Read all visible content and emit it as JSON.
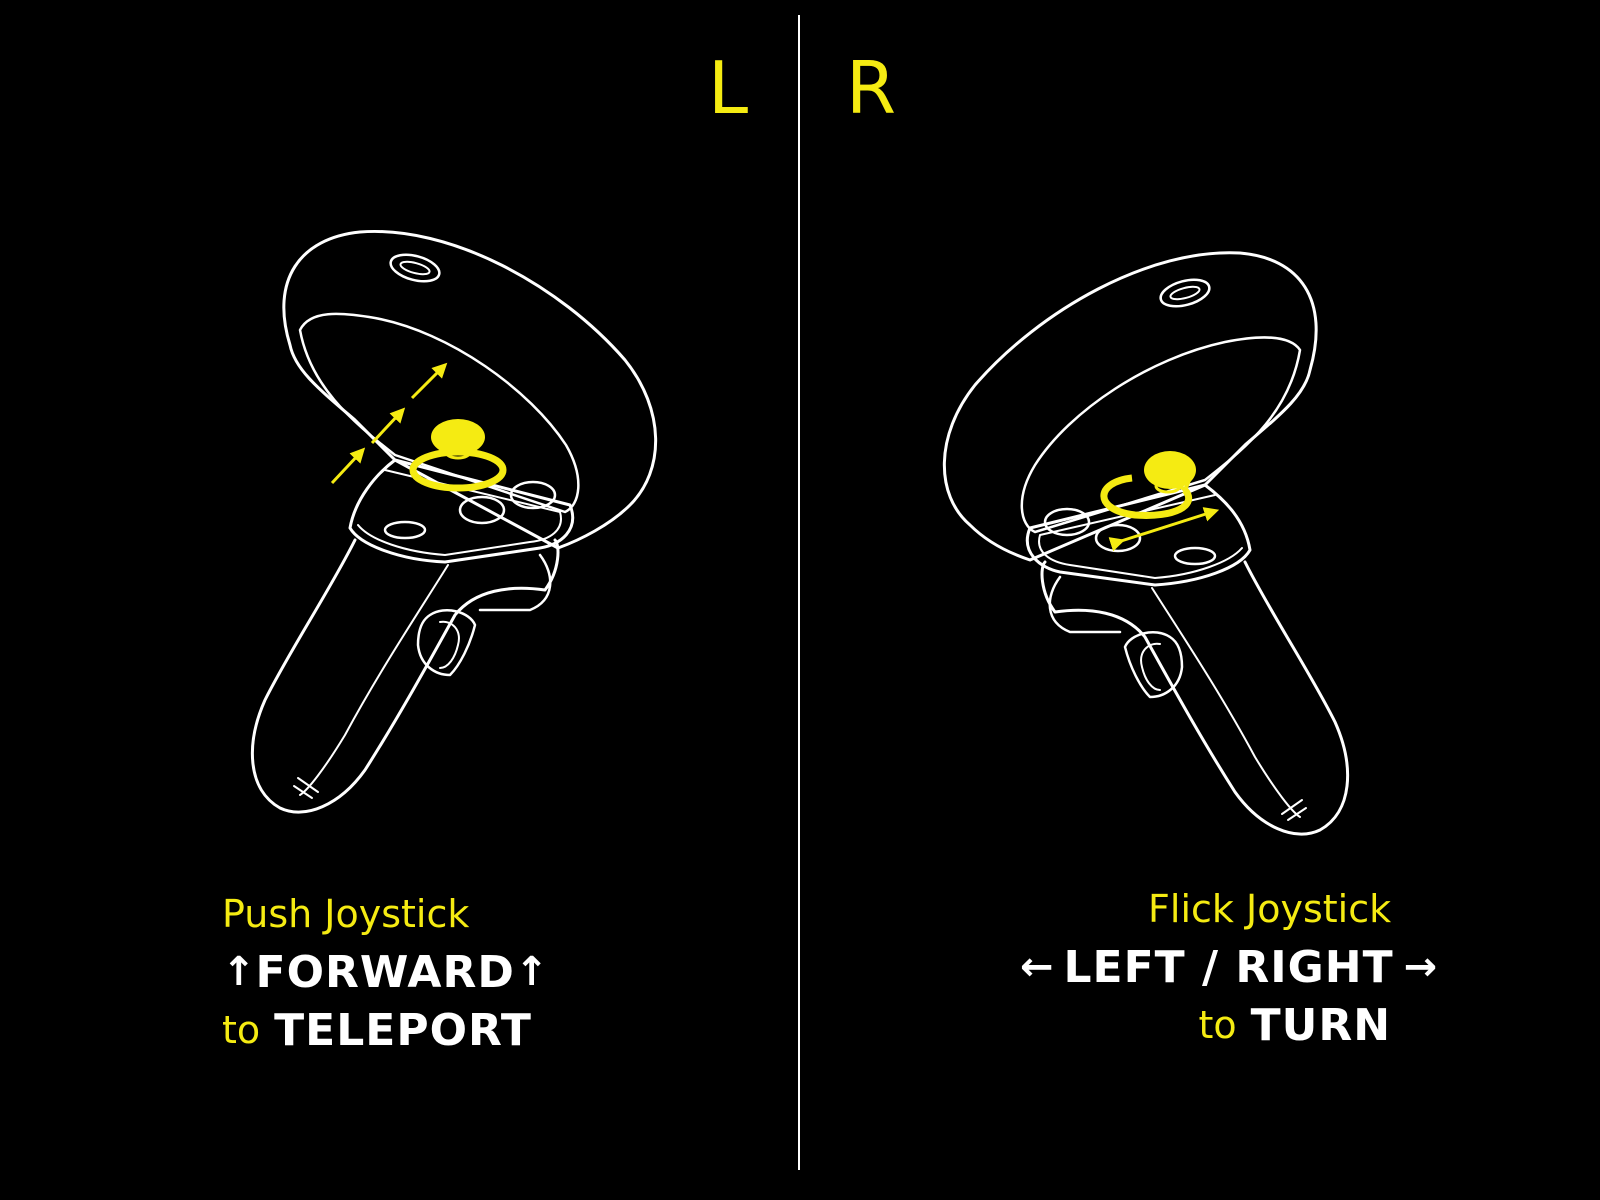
{
  "sides": {
    "left_letter": "L",
    "right_letter": "R"
  },
  "left_caption": {
    "line1": "Push Joystick",
    "arrow_left": "↑",
    "action": "FORWARD",
    "arrow_right": "↑",
    "to": "to",
    "verb": "TELEPORT"
  },
  "right_caption": {
    "line1": "Flick Joystick",
    "arrow_left": "←",
    "action": "LEFT / RIGHT",
    "arrow_right": "→",
    "to": "to",
    "verb": "TURN"
  },
  "colors": {
    "background": "#000000",
    "accent": "#f5eb12",
    "outline": "#ffffff"
  }
}
